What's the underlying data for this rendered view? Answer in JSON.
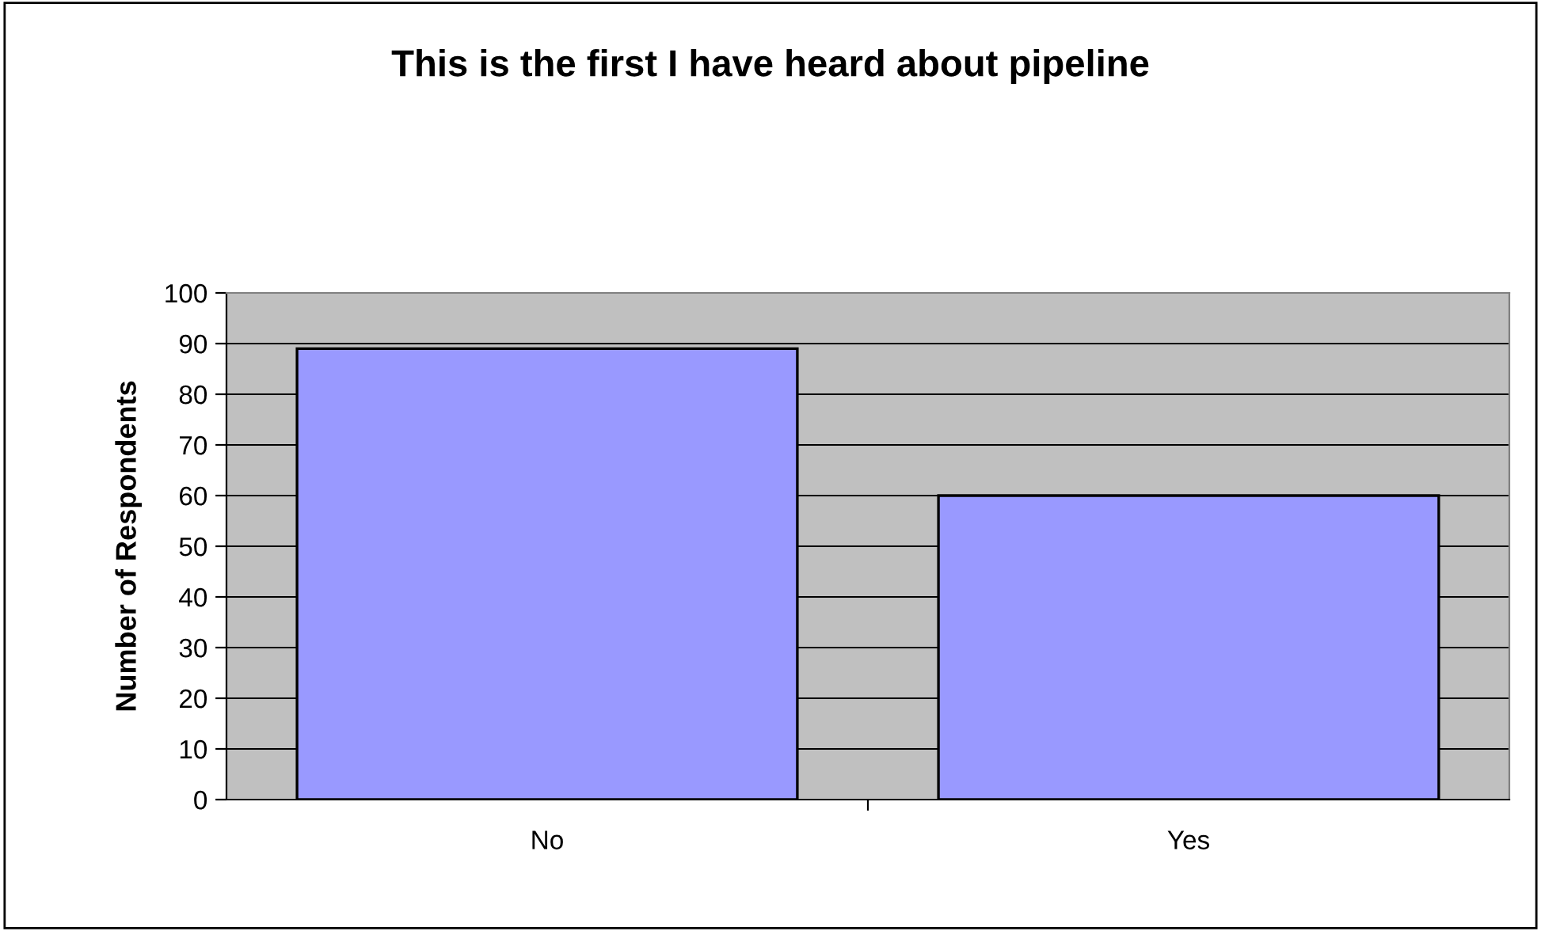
{
  "chart_data": {
    "type": "bar",
    "title": "This is the first I have heard about pipeline",
    "ylabel": "Number of Respondents",
    "categories": [
      "No",
      "Yes"
    ],
    "values": [
      89,
      60
    ],
    "color": "#9999ff",
    "ylim": [
      0,
      100
    ],
    "yticks": [
      0,
      10,
      20,
      30,
      40,
      50,
      60,
      70,
      80,
      90,
      100
    ],
    "grid": "y",
    "legend": false
  }
}
